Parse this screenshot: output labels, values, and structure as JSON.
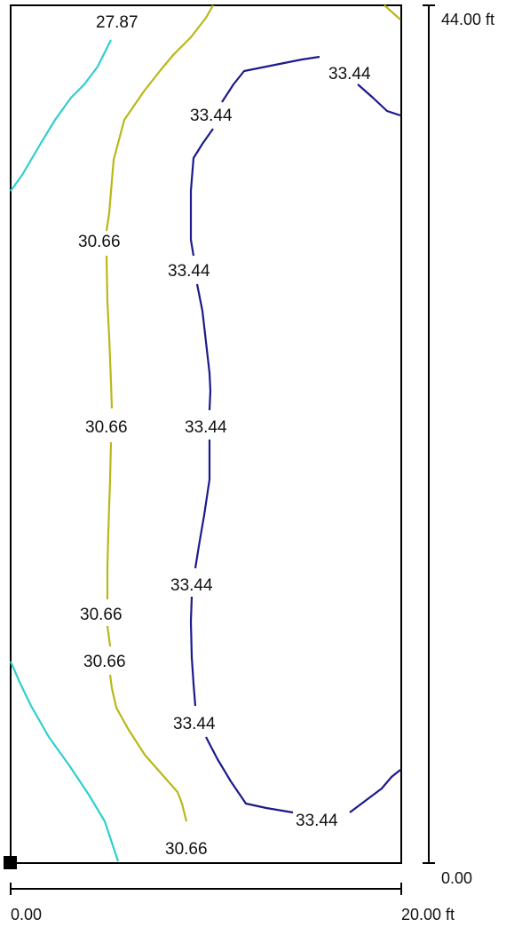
{
  "scales": {
    "x_start_label": "0.00",
    "x_end_label": "20.00 ft",
    "y_start_label": "0.00",
    "y_end_label": "44.00 ft"
  },
  "contour_levels": [
    {
      "name": "level-27-87",
      "value": "27.87",
      "color": "#2ecfd0"
    },
    {
      "name": "level-30-66",
      "value": "30.66",
      "color": "#b8b818"
    },
    {
      "name": "level-33-44",
      "value": "33.44",
      "color": "#1a1a8c"
    }
  ],
  "labels": {
    "l1": "27.87",
    "l2": "30.66",
    "l3": "30.66",
    "l4": "30.66",
    "l5": "30.66",
    "l6": "30.66",
    "l7": "33.44",
    "l8": "33.44",
    "l9": "33.44",
    "l10": "33.44",
    "l11": "33.44",
    "l12": "33.44",
    "l13": "33.44"
  },
  "origin_marker_color": "#000000"
}
